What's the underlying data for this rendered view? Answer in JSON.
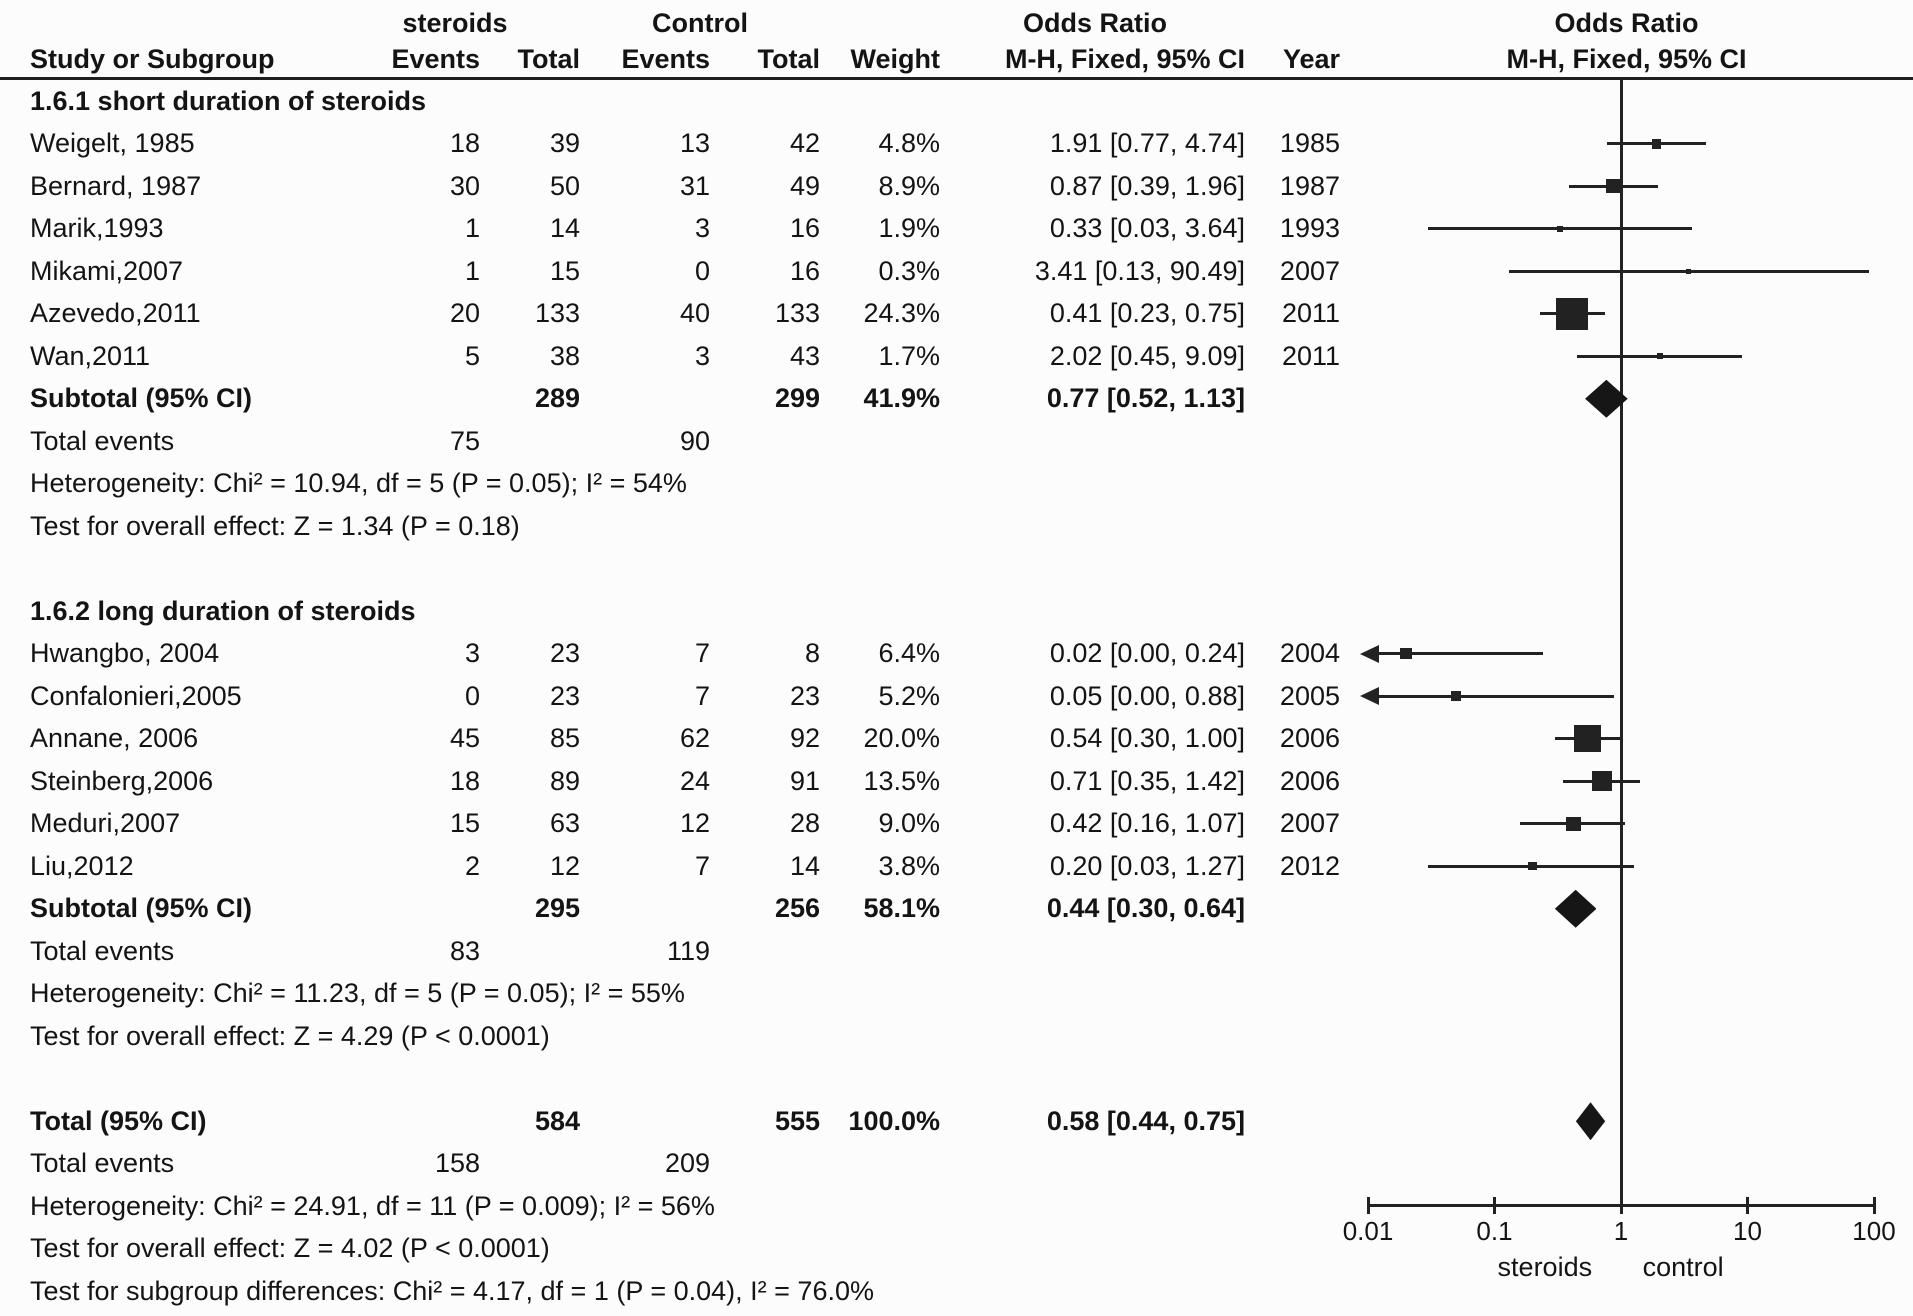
{
  "figure": {
    "header": {
      "grp1": "steroids",
      "grp2": "Control",
      "or_title_left": "Odds Ratio",
      "or_title_right": "Odds Ratio",
      "col_study": "Study or Subgroup",
      "col_events1": "Events",
      "col_total1": "Total",
      "col_events2": "Events",
      "col_total2": "Total",
      "col_weight": "Weight",
      "or_sub_left": "M-H, Fixed, 95% CI",
      "col_year": "Year",
      "or_sub_right": "M-H, Fixed, 95% CI"
    }
  },
  "chart_data": {
    "type": "forest",
    "effect_measure": "Odds Ratio (M-H, Fixed, 95% CI)",
    "comparison": "steroids vs Control",
    "axis": {
      "scale": "log",
      "ticks": [
        0.01,
        0.1,
        1,
        10,
        100
      ],
      "tick_labels": [
        "0.01",
        "0.1",
        "1",
        "10",
        "100"
      ],
      "null_line": 1,
      "favors_left": "steroids",
      "favors_right": "control"
    },
    "groups": [
      {
        "name": "1.6.1 short duration of steroids",
        "studies": [
          {
            "study": "Weigelt, 1985",
            "steroids_events": "18",
            "steroids_total": "39",
            "control_events": "13",
            "control_total": "42",
            "weight": "4.8%",
            "weight_pct": 4.8,
            "or": 1.91,
            "ci_low": 0.77,
            "ci_high": 4.74,
            "or_text": "1.91 [0.77, 4.74]",
            "year": "1985",
            "arrow_low": false
          },
          {
            "study": "Bernard, 1987",
            "steroids_events": "30",
            "steroids_total": "50",
            "control_events": "31",
            "control_total": "49",
            "weight": "8.9%",
            "weight_pct": 8.9,
            "or": 0.87,
            "ci_low": 0.39,
            "ci_high": 1.96,
            "or_text": "0.87 [0.39, 1.96]",
            "year": "1987",
            "arrow_low": false
          },
          {
            "study": "Marik,1993",
            "steroids_events": "1",
            "steroids_total": "14",
            "control_events": "3",
            "control_total": "16",
            "weight": "1.9%",
            "weight_pct": 1.9,
            "or": 0.33,
            "ci_low": 0.03,
            "ci_high": 3.64,
            "or_text": "0.33 [0.03, 3.64]",
            "year": "1993",
            "arrow_low": false
          },
          {
            "study": "Mikami,2007",
            "steroids_events": "1",
            "steroids_total": "15",
            "control_events": "0",
            "control_total": "16",
            "weight": "0.3%",
            "weight_pct": 0.3,
            "or": 3.41,
            "ci_low": 0.13,
            "ci_high": 90.49,
            "or_text": "3.41 [0.13, 90.49]",
            "year": "2007",
            "arrow_low": false
          },
          {
            "study": "Azevedo,2011",
            "steroids_events": "20",
            "steroids_total": "133",
            "control_events": "40",
            "control_total": "133",
            "weight": "24.3%",
            "weight_pct": 24.3,
            "or": 0.41,
            "ci_low": 0.23,
            "ci_high": 0.75,
            "or_text": "0.41 [0.23, 0.75]",
            "year": "2011",
            "arrow_low": false
          },
          {
            "study": "Wan,2011",
            "steroids_events": "5",
            "steroids_total": "38",
            "control_events": "3",
            "control_total": "43",
            "weight": "1.7%",
            "weight_pct": 1.7,
            "or": 2.02,
            "ci_low": 0.45,
            "ci_high": 9.09,
            "or_text": "2.02 [0.45, 9.09]",
            "year": "2011",
            "arrow_low": false
          }
        ],
        "subtotal": {
          "label": "Subtotal (95% CI)",
          "steroids_total": "289",
          "control_total": "299",
          "weight": "41.9%",
          "or": 0.77,
          "ci_low": 0.52,
          "ci_high": 1.13,
          "or_text": "0.77 [0.52, 1.13]"
        },
        "total_events_label": "Total events",
        "steroids_events_sum": "75",
        "control_events_sum": "90",
        "heterogeneity": "Heterogeneity: Chi² = 10.94, df = 5 (P = 0.05); I² = 54%",
        "overall_effect": "Test for overall effect: Z = 1.34 (P = 0.18)"
      },
      {
        "name": "1.6.2 long duration of steroids",
        "studies": [
          {
            "study": "Hwangbo, 2004",
            "steroids_events": "3",
            "steroids_total": "23",
            "control_events": "7",
            "control_total": "8",
            "weight": "6.4%",
            "weight_pct": 6.4,
            "or": 0.02,
            "ci_low": 0.0,
            "ci_high": 0.24,
            "or_text": "0.02 [0.00, 0.24]",
            "year": "2004",
            "arrow_low": true
          },
          {
            "study": "Confalonieri,2005",
            "steroids_events": "0",
            "steroids_total": "23",
            "control_events": "7",
            "control_total": "23",
            "weight": "5.2%",
            "weight_pct": 5.2,
            "or": 0.05,
            "ci_low": 0.0,
            "ci_high": 0.88,
            "or_text": "0.05 [0.00, 0.88]",
            "year": "2005",
            "arrow_low": true
          },
          {
            "study": "Annane, 2006",
            "steroids_events": "45",
            "steroids_total": "85",
            "control_events": "62",
            "control_total": "92",
            "weight": "20.0%",
            "weight_pct": 20.0,
            "or": 0.54,
            "ci_low": 0.3,
            "ci_high": 1.0,
            "or_text": "0.54 [0.30, 1.00]",
            "year": "2006",
            "arrow_low": false
          },
          {
            "study": "Steinberg,2006",
            "steroids_events": "18",
            "steroids_total": "89",
            "control_events": "24",
            "control_total": "91",
            "weight": "13.5%",
            "weight_pct": 13.5,
            "or": 0.71,
            "ci_low": 0.35,
            "ci_high": 1.42,
            "or_text": "0.71 [0.35, 1.42]",
            "year": "2006",
            "arrow_low": false
          },
          {
            "study": "Meduri,2007",
            "steroids_events": "15",
            "steroids_total": "63",
            "control_events": "12",
            "control_total": "28",
            "weight": "9.0%",
            "weight_pct": 9.0,
            "or": 0.42,
            "ci_low": 0.16,
            "ci_high": 1.07,
            "or_text": "0.42 [0.16, 1.07]",
            "year": "2007",
            "arrow_low": false
          },
          {
            "study": "Liu,2012",
            "steroids_events": "2",
            "steroids_total": "12",
            "control_events": "7",
            "control_total": "14",
            "weight": "3.8%",
            "weight_pct": 3.8,
            "or": 0.2,
            "ci_low": 0.03,
            "ci_high": 1.27,
            "or_text": "0.20 [0.03, 1.27]",
            "year": "2012",
            "arrow_low": false
          }
        ],
        "subtotal": {
          "label": "Subtotal (95% CI)",
          "steroids_total": "295",
          "control_total": "256",
          "weight": "58.1%",
          "or": 0.44,
          "ci_low": 0.3,
          "ci_high": 0.64,
          "or_text": "0.44 [0.30, 0.64]"
        },
        "total_events_label": "Total events",
        "steroids_events_sum": "83",
        "control_events_sum": "119",
        "heterogeneity": "Heterogeneity: Chi² = 11.23, df = 5 (P = 0.05); I² = 55%",
        "overall_effect": "Test for overall effect: Z = 4.29 (P < 0.0001)"
      }
    ],
    "total": {
      "label": "Total (95% CI)",
      "steroids_total": "584",
      "control_total": "555",
      "weight": "100.0%",
      "or": 0.58,
      "ci_low": 0.44,
      "ci_high": 0.75,
      "or_text": "0.58 [0.44, 0.75]",
      "total_events_label": "Total events",
      "steroids_events_sum": "158",
      "control_events_sum": "209",
      "heterogeneity": "Heterogeneity: Chi² = 24.91, df = 11 (P = 0.009); I² = 56%",
      "overall_effect": "Test for overall effect: Z = 4.02 (P < 0.0001)",
      "subgroup_diff": "Test for subgroup differences: Chi² = 4.17, df = 1 (P = 0.04), I² = 76.0%"
    },
    "colors": {
      "text": "#141414",
      "marker": "#161616",
      "line": "#222222",
      "background": "#fcfcfc"
    }
  }
}
